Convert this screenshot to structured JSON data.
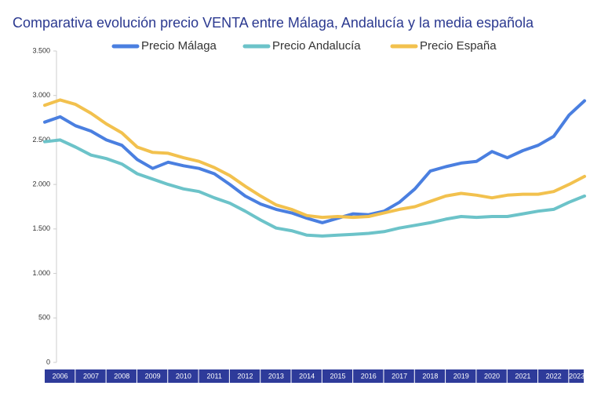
{
  "chart_data": {
    "type": "line",
    "title": "Comparativa evolución precio VENTA entre Málaga, Andalucía y la media española",
    "x": [
      2006,
      2006.5,
      2007,
      2007.5,
      2008,
      2008.5,
      2009,
      2009.5,
      2010,
      2010.5,
      2011,
      2011.5,
      2012,
      2012.5,
      2013,
      2013.5,
      2014,
      2014.5,
      2015,
      2015.5,
      2016,
      2016.5,
      2017,
      2017.5,
      2018,
      2018.5,
      2019,
      2019.5,
      2020,
      2020.5,
      2021,
      2021.5,
      2022,
      2022.5,
      2023,
      2023.5
    ],
    "xlim": [
      2006,
      2023.5
    ],
    "xticks": [
      2006,
      2007,
      2008,
      2009,
      2010,
      2011,
      2012,
      2013,
      2014,
      2015,
      2016,
      2017,
      2018,
      2019,
      2020,
      2021,
      2022,
      2023
    ],
    "ylim": [
      0,
      3500
    ],
    "yticks": [
      0,
      500,
      {
        "value": 1000,
        "label": "1.000"
      },
      {
        "value": 1500,
        "label": "1.500"
      },
      {
        "value": 2000,
        "label": "2.000"
      },
      {
        "value": 2500,
        "label": "2.500"
      },
      {
        "value": 3000,
        "label": "3.000"
      },
      {
        "value": 3500,
        "label": "3.500"
      }
    ],
    "legend": "top",
    "series": [
      {
        "name": "Precio Málaga",
        "color": "#4a7fe0",
        "values": [
          2700,
          2760,
          2660,
          2600,
          2500,
          2440,
          2280,
          2180,
          2250,
          2210,
          2180,
          2120,
          2000,
          1870,
          1780,
          1720,
          1680,
          1620,
          1570,
          1620,
          1670,
          1660,
          1700,
          1800,
          1950,
          2150,
          2200,
          2240,
          2260,
          2370,
          2300,
          2380,
          2440,
          2540,
          2780,
          2940
        ]
      },
      {
        "name": "Precio Andalucía",
        "color": "#6cc3c9",
        "values": [
          2480,
          2500,
          2420,
          2330,
          2290,
          2230,
          2120,
          2060,
          2000,
          1950,
          1920,
          1850,
          1790,
          1700,
          1600,
          1510,
          1480,
          1430,
          1420,
          1430,
          1440,
          1450,
          1470,
          1510,
          1540,
          1570,
          1610,
          1640,
          1630,
          1640,
          1640,
          1670,
          1700,
          1720,
          1800,
          1870
        ]
      },
      {
        "name": "Precio España",
        "color": "#f2c14e",
        "values": [
          2890,
          2950,
          2900,
          2800,
          2680,
          2580,
          2420,
          2360,
          2350,
          2300,
          2260,
          2190,
          2100,
          1980,
          1870,
          1770,
          1720,
          1650,
          1630,
          1640,
          1630,
          1640,
          1680,
          1720,
          1750,
          1810,
          1870,
          1900,
          1880,
          1850,
          1880,
          1890,
          1890,
          1920,
          2000,
          2090
        ]
      }
    ]
  }
}
